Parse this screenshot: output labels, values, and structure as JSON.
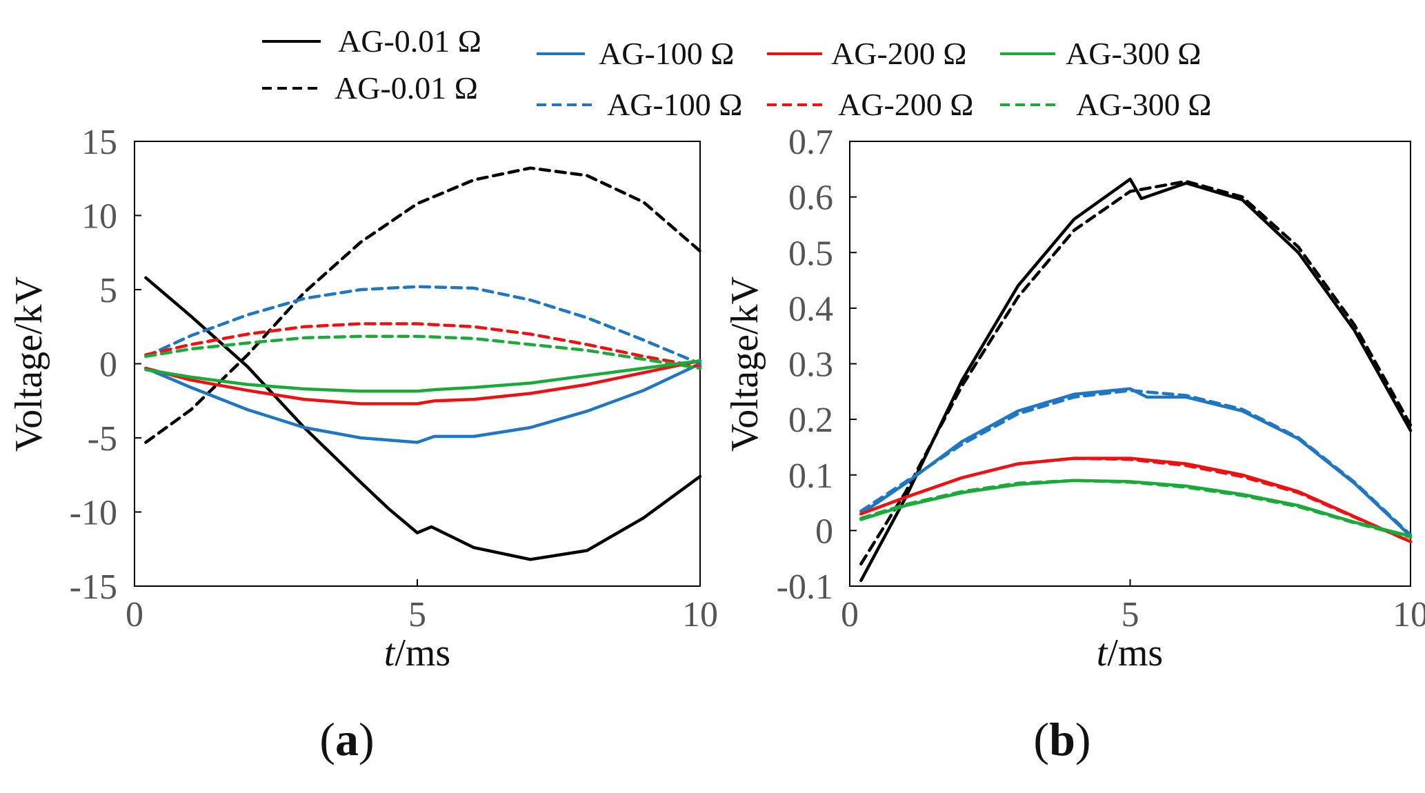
{
  "legend": {
    "solid": [
      {
        "label": "AG-0.01 Ω",
        "color": "#000000"
      },
      {
        "label": "AG-100 Ω",
        "color": "#1f77c4"
      },
      {
        "label": "AG-200 Ω",
        "color": "#ee1111"
      },
      {
        "label": "AG-300 Ω",
        "color": "#1aaa3a"
      }
    ],
    "dashed": [
      {
        "label": "AG-0.01 Ω",
        "color": "#000000"
      },
      {
        "label": "AG-100 Ω",
        "color": "#1f77c4"
      },
      {
        "label": "AG-200 Ω",
        "color": "#ee1111"
      },
      {
        "label": "AG-300 Ω",
        "color": "#1aaa3a"
      }
    ]
  },
  "chart_data": [
    {
      "type": "line",
      "panel_label": "a",
      "xlabel_italic": "t",
      "xlabel_rest": "/ms",
      "ylabel": "Voltage/kV",
      "xlim": [
        0,
        10
      ],
      "ylim": [
        -15,
        15
      ],
      "xticks": [
        0,
        5,
        10
      ],
      "yticks": [
        -15,
        -10,
        -5,
        0,
        5,
        10,
        15
      ],
      "ytick_labels": [
        "-15",
        "-10",
        "-5",
        "0",
        "5",
        "10",
        "15"
      ],
      "series": [
        {
          "name": "AG-0.01 Ω",
          "style": "solid",
          "color": "#000000",
          "x": [
            0.2,
            1,
            2,
            3,
            4,
            4.5,
            5,
            5.25,
            6,
            7,
            8,
            9,
            10
          ],
          "y": [
            5.8,
            3.2,
            -0.2,
            -4.3,
            -8.0,
            -9.8,
            -11.4,
            -11.0,
            -12.4,
            -13.2,
            -12.6,
            -10.4,
            -7.6
          ]
        },
        {
          "name": "AG-0.01 Ω",
          "style": "dashed",
          "color": "#000000",
          "x": [
            0.2,
            1,
            2,
            3,
            4,
            5,
            6,
            7,
            8,
            9,
            10
          ],
          "y": [
            -5.3,
            -3.1,
            0.6,
            4.8,
            8.2,
            10.8,
            12.4,
            13.2,
            12.7,
            10.9,
            7.6
          ]
        },
        {
          "name": "AG-100 Ω",
          "style": "solid",
          "color": "#1f77c4",
          "x": [
            0.2,
            1,
            2,
            3,
            4,
            5,
            5.3,
            6,
            7,
            8,
            9,
            10
          ],
          "y": [
            -0.3,
            -1.6,
            -3.1,
            -4.3,
            -5.0,
            -5.3,
            -4.9,
            -4.9,
            -4.3,
            -3.2,
            -1.8,
            0.0
          ]
        },
        {
          "name": "AG-100 Ω",
          "style": "dashed",
          "color": "#1f77c4",
          "x": [
            0.2,
            1,
            2,
            3,
            4,
            5,
            6,
            7,
            8,
            9,
            10
          ],
          "y": [
            0.5,
            1.9,
            3.3,
            4.4,
            5.0,
            5.2,
            5.1,
            4.3,
            3.1,
            1.6,
            0.0
          ]
        },
        {
          "name": "AG-200 Ω",
          "style": "solid",
          "color": "#ee1111",
          "x": [
            0.2,
            1,
            2,
            3,
            4,
            5,
            5.3,
            6,
            7,
            8,
            9,
            10
          ],
          "y": [
            -0.3,
            -1.1,
            -1.8,
            -2.4,
            -2.7,
            -2.7,
            -2.5,
            -2.4,
            -2.0,
            -1.4,
            -0.6,
            0.2
          ]
        },
        {
          "name": "AG-200 Ω",
          "style": "dashed",
          "color": "#ee1111",
          "x": [
            0.2,
            1,
            2,
            3,
            4,
            5,
            6,
            7,
            8,
            9,
            10
          ],
          "y": [
            0.6,
            1.3,
            2.0,
            2.5,
            2.7,
            2.7,
            2.5,
            2.0,
            1.3,
            0.5,
            -0.2
          ]
        },
        {
          "name": "AG-300 Ω",
          "style": "solid",
          "color": "#1aaa3a",
          "x": [
            0.2,
            1,
            2,
            3,
            4,
            5,
            5.3,
            6,
            7,
            8,
            9,
            10
          ],
          "y": [
            -0.4,
            -0.9,
            -1.4,
            -1.7,
            -1.85,
            -1.85,
            -1.75,
            -1.6,
            -1.3,
            -0.8,
            -0.3,
            0.2
          ]
        },
        {
          "name": "AG-300 Ω",
          "style": "dashed",
          "color": "#1aaa3a",
          "x": [
            0.2,
            1,
            2,
            3,
            4,
            5,
            6,
            7,
            8,
            9,
            10
          ],
          "y": [
            0.5,
            1.0,
            1.4,
            1.75,
            1.85,
            1.85,
            1.7,
            1.3,
            0.9,
            0.3,
            -0.3
          ]
        }
      ]
    },
    {
      "type": "line",
      "panel_label": "b",
      "xlabel_italic": "t",
      "xlabel_rest": "/ms",
      "ylabel": "Voltage/kV",
      "xlim": [
        0,
        10
      ],
      "ylim": [
        -0.1,
        0.7
      ],
      "xticks": [
        0,
        5,
        10
      ],
      "yticks": [
        -0.1,
        0,
        0.1,
        0.2,
        0.3,
        0.4,
        0.5,
        0.6,
        0.7
      ],
      "ytick_labels": [
        "-0.1",
        "0",
        "0.1",
        "0.2",
        "0.3",
        "0.4",
        "0.5",
        "0.6",
        "0.7"
      ],
      "series": [
        {
          "name": "AG-0.01 Ω",
          "style": "solid",
          "color": "#000000",
          "x": [
            0.2,
            1,
            2,
            3,
            4,
            5,
            5.2,
            6,
            7,
            8,
            9,
            10
          ],
          "y": [
            -0.09,
            0.06,
            0.27,
            0.44,
            0.56,
            0.632,
            0.597,
            0.625,
            0.595,
            0.5,
            0.36,
            0.18
          ]
        },
        {
          "name": "AG-0.01 Ω",
          "style": "dashed",
          "color": "#000000",
          "x": [
            0.2,
            1,
            2,
            3,
            4,
            5,
            6,
            7,
            8,
            9,
            10
          ],
          "y": [
            -0.06,
            0.07,
            0.26,
            0.42,
            0.54,
            0.61,
            0.628,
            0.6,
            0.51,
            0.37,
            0.19
          ]
        },
        {
          "name": "AG-100 Ω",
          "style": "solid",
          "color": "#1f77c4",
          "x": [
            0.2,
            1,
            2,
            3,
            4,
            5,
            5.3,
            6,
            7,
            8,
            9,
            10
          ],
          "y": [
            0.03,
            0.085,
            0.16,
            0.215,
            0.245,
            0.255,
            0.24,
            0.24,
            0.215,
            0.165,
            0.085,
            -0.01
          ]
        },
        {
          "name": "AG-100 Ω",
          "style": "dashed",
          "color": "#1f77c4",
          "x": [
            0.2,
            1,
            2,
            3,
            4,
            5,
            6,
            7,
            8,
            9,
            10
          ],
          "y": [
            0.035,
            0.088,
            0.155,
            0.21,
            0.24,
            0.252,
            0.243,
            0.218,
            0.167,
            0.087,
            -0.008
          ]
        },
        {
          "name": "AG-200 Ω",
          "style": "solid",
          "color": "#ee1111",
          "x": [
            0.2,
            1,
            2,
            3,
            4,
            5,
            6,
            7,
            8,
            9,
            10
          ],
          "y": [
            0.03,
            0.06,
            0.095,
            0.12,
            0.13,
            0.13,
            0.12,
            0.1,
            0.07,
            0.025,
            -0.02
          ]
        },
        {
          "name": "AG-200 Ω",
          "style": "dashed",
          "color": "#ee1111",
          "x": [
            0.2,
            1,
            2,
            3,
            4,
            5,
            6,
            7,
            8,
            9,
            10
          ],
          "y": [
            0.03,
            0.06,
            0.095,
            0.12,
            0.13,
            0.128,
            0.117,
            0.097,
            0.068,
            0.024,
            -0.02
          ]
        },
        {
          "name": "AG-300 Ω",
          "style": "solid",
          "color": "#1aaa3a",
          "x": [
            0.2,
            1,
            2,
            3,
            4,
            5,
            6,
            7,
            8,
            9,
            10
          ],
          "y": [
            0.02,
            0.045,
            0.068,
            0.083,
            0.09,
            0.088,
            0.08,
            0.065,
            0.045,
            0.015,
            -0.01
          ]
        },
        {
          "name": "AG-300 Ω",
          "style": "dashed",
          "color": "#1aaa3a",
          "x": [
            0.2,
            1,
            2,
            3,
            4,
            5,
            6,
            7,
            8,
            9,
            10
          ],
          "y": [
            0.022,
            0.047,
            0.07,
            0.085,
            0.09,
            0.087,
            0.078,
            0.063,
            0.043,
            0.014,
            -0.012
          ]
        }
      ]
    }
  ]
}
